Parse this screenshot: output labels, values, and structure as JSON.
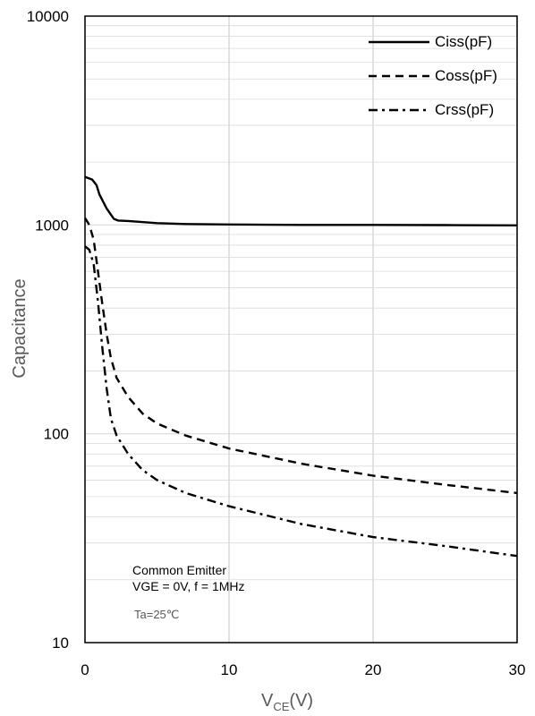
{
  "chart_data": {
    "type": "line",
    "xlabel_main": "V",
    "xlabel_sub": "CE",
    "xlabel_unit": "(V)",
    "ylabel": "Capacitance",
    "xlim": [
      0,
      30
    ],
    "ylim": [
      10,
      10000
    ],
    "yscale": "log",
    "grid": true,
    "legend_position": "top-right",
    "x_ticks": [
      "0",
      "10",
      "20",
      "30"
    ],
    "y_ticks": [
      "10",
      "100",
      "1000",
      "10000"
    ],
    "series": [
      {
        "name": "Ciss(pF)",
        "style": "solid",
        "x": [
          0,
          0.5,
          0.8,
          1.0,
          1.5,
          2.0,
          2.3,
          3,
          5,
          7,
          10,
          15,
          20,
          25,
          30
        ],
        "y": [
          1700,
          1650,
          1550,
          1400,
          1200,
          1070,
          1050,
          1045,
          1020,
          1010,
          1005,
          1000,
          1000,
          998,
          995
        ]
      },
      {
        "name": "Coss(pF)",
        "style": "dashed",
        "x": [
          0,
          0.3,
          0.6,
          0.9,
          1.2,
          1.5,
          1.8,
          2.2,
          3,
          4,
          5,
          7,
          10,
          15,
          20,
          25,
          30
        ],
        "y": [
          1080,
          1000,
          850,
          600,
          420,
          300,
          230,
          185,
          150,
          125,
          112,
          98,
          85,
          72,
          63,
          57,
          52
        ]
      },
      {
        "name": "Crss(pF)",
        "style": "dashdot",
        "x": [
          0,
          0.3,
          0.6,
          0.9,
          1.2,
          1.5,
          1.8,
          2.2,
          3,
          4,
          5,
          7,
          10,
          15,
          20,
          25,
          30
        ],
        "y": [
          790,
          760,
          650,
          430,
          260,
          165,
          118,
          98,
          80,
          67,
          60,
          52,
          45,
          37,
          32,
          29,
          26
        ]
      }
    ],
    "annotations": [
      "Common Emitter",
      "VGE = 0V, f = 1MHz",
      "Ta=25℃"
    ]
  },
  "colors": {
    "line": "#000000",
    "grid": "#d9d9d9",
    "axis": "#000000"
  }
}
